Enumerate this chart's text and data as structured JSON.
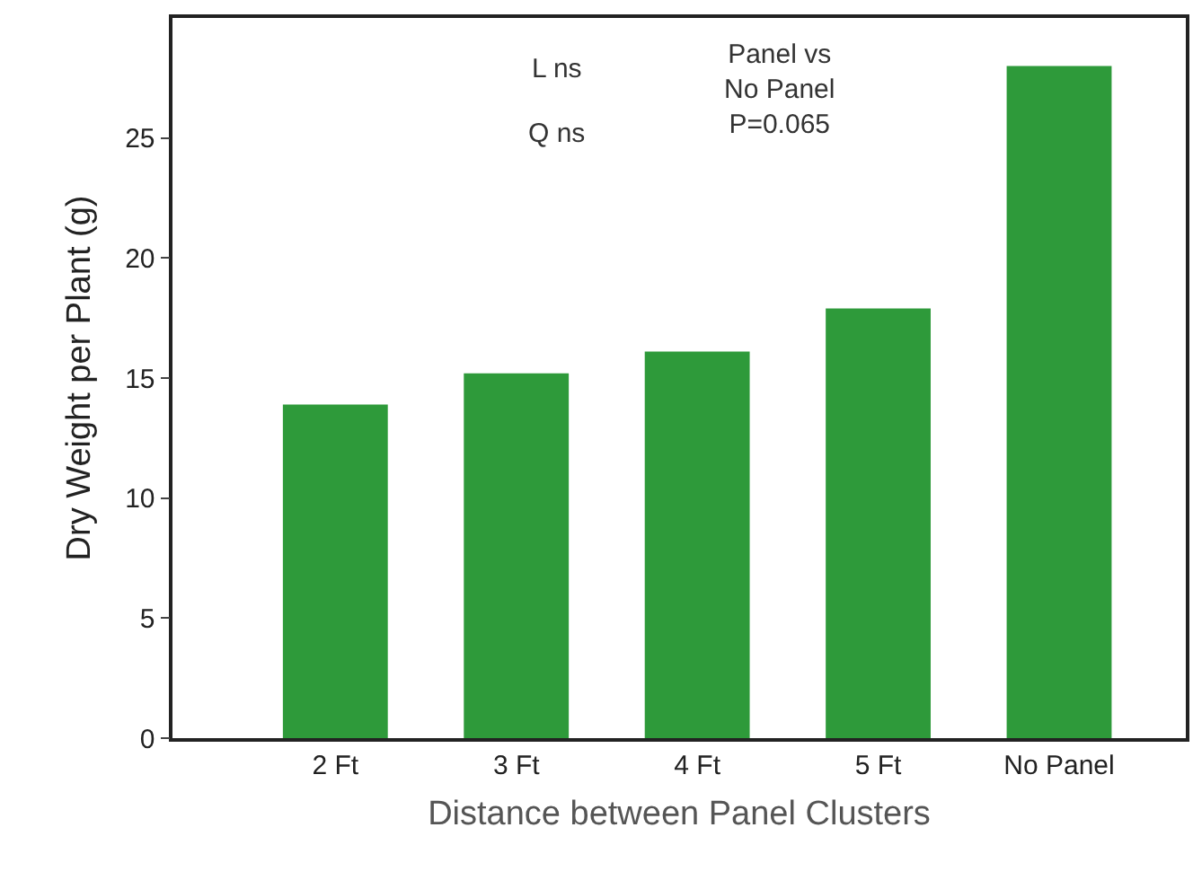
{
  "chart_data": {
    "type": "bar",
    "xlabel": "Distance between Panel Clusters",
    "ylabel": "Dry Weight per Plant (g)",
    "categories": [
      "2 Ft",
      "3 Ft",
      "4 Ft",
      "5 Ft",
      "No Panel"
    ],
    "values": [
      13.9,
      15.2,
      16.1,
      17.9,
      28.0
    ],
    "color": "#2e9a3a",
    "ylim": [
      0,
      30
    ],
    "yticks": [
      0,
      5,
      10,
      15,
      20,
      25
    ],
    "grid": false,
    "annotations": [
      "L ns",
      "Q ns",
      "Panel vs\nNo Panel\nP=0.065"
    ]
  }
}
